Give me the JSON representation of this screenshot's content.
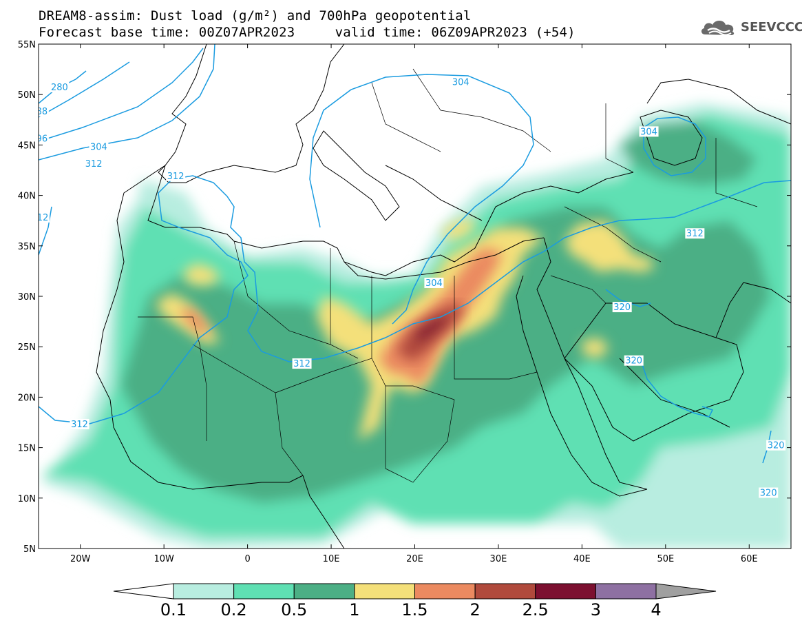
{
  "header": {
    "line1": "DREAM8-assim: Dust load (g/m²) and 700hPa geopotential",
    "base_label": "Forecast base time: 00Z07APR2023",
    "valid_label": "valid time: 06Z09APR2023 (+54)"
  },
  "logo": {
    "text": "SEEVCCC",
    "icon": "cloud-icon"
  },
  "axes": {
    "lon_min": -25,
    "lon_max": 65,
    "lat_min": 5,
    "lat_max": 55,
    "lat_ticks": [
      "55N",
      "50N",
      "45N",
      "40N",
      "35N",
      "30N",
      "25N",
      "20N",
      "15N",
      "10N",
      "5N"
    ],
    "lon_ticks": [
      "20W",
      "10W",
      "0",
      "10E",
      "20E",
      "30E",
      "40E",
      "50E",
      "60E"
    ]
  },
  "colorbar": {
    "levels": [
      "0.1",
      "0.2",
      "0.5",
      "1",
      "1.5",
      "2",
      "2.5",
      "3",
      "4"
    ],
    "colors": [
      "#b8ede0",
      "#5fe0b3",
      "#4caf85",
      "#f4e07a",
      "#eb8a60",
      "#b04a3c",
      "#7c1030",
      "#8e70a2",
      "#a0a0a0"
    ]
  },
  "contours": {
    "color": "#1a9be0",
    "labels": [
      {
        "text": "280",
        "lon": -22.5,
        "lat": 50.7
      },
      {
        "text": "88",
        "lon": -24.6,
        "lat": 48.3
      },
      {
        "text": "96",
        "lon": -24.6,
        "lat": 45.6
      },
      {
        "text": "304",
        "lon": -17.8,
        "lat": 44.8
      },
      {
        "text": "312",
        "lon": -18.4,
        "lat": 43.1
      },
      {
        "text": "12",
        "lon": -24.5,
        "lat": 37.8
      },
      {
        "text": "304",
        "lon": 25.5,
        "lat": 51.2
      },
      {
        "text": "304",
        "lon": 48,
        "lat": 46.3
      },
      {
        "text": "312",
        "lon": -8.6,
        "lat": 41.9
      },
      {
        "text": "312",
        "lon": 53.5,
        "lat": 36.2
      },
      {
        "text": "304",
        "lon": 22.3,
        "lat": 31.3
      },
      {
        "text": "320",
        "lon": 44.8,
        "lat": 28.9
      },
      {
        "text": "312",
        "lon": 6.5,
        "lat": 23.3
      },
      {
        "text": "320",
        "lon": 46.2,
        "lat": 23.6
      },
      {
        "text": "312",
        "lon": -20.1,
        "lat": 17.3
      },
      {
        "text": "320",
        "lon": 63.2,
        "lat": 15.2
      },
      {
        "text": "320",
        "lon": 62.3,
        "lat": 10.5
      }
    ]
  }
}
